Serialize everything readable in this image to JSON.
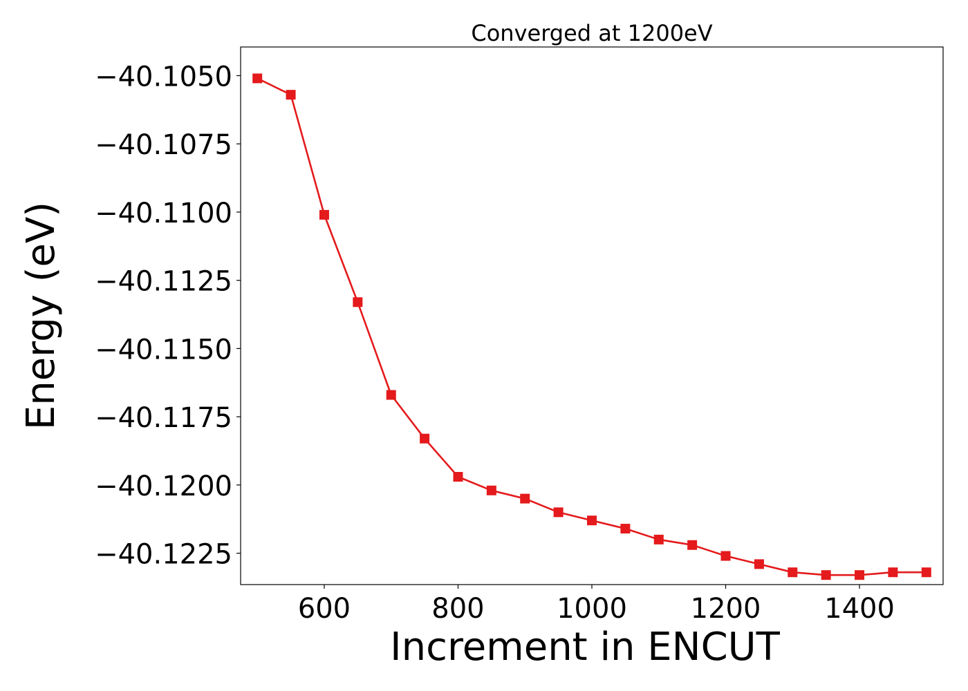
{
  "chart_data": {
    "type": "line",
    "title": "Converged at 1200eV",
    "xlabel": "Increment in ENCUT",
    "ylabel": "Energy (eV)",
    "xlim": [
      475,
      1525
    ],
    "ylim": [
      -40.12365,
      -40.10395
    ],
    "xticks": [
      600,
      800,
      1000,
      1200,
      1400
    ],
    "xtick_labels": [
      "600",
      "800",
      "1000",
      "1200",
      "1400"
    ],
    "yticks": [
      -40.105,
      -40.1075,
      -40.11,
      -40.1125,
      -40.115,
      -40.1175,
      -40.12,
      -40.1225
    ],
    "ytick_labels": [
      "−40.1050",
      "−40.1075",
      "−40.1100",
      "−40.1125",
      "−40.1150",
      "−40.1175",
      "−40.1200",
      "−40.1225"
    ],
    "grid": false,
    "series": [
      {
        "color": "#e41a1c",
        "marker": "square",
        "x": [
          500,
          550,
          600,
          650,
          700,
          750,
          800,
          850,
          900,
          950,
          1000,
          1050,
          1100,
          1150,
          1200,
          1250,
          1300,
          1350,
          1400,
          1450,
          1500
        ],
        "y": [
          -40.1051,
          -40.1057,
          -40.1101,
          -40.1133,
          -40.1167,
          -40.1183,
          -40.1197,
          -40.1202,
          -40.1205,
          -40.121,
          -40.1213,
          -40.1216,
          -40.122,
          -40.1222,
          -40.1226,
          -40.1229,
          -40.1232,
          -40.1233,
          -40.1233,
          -40.1232,
          -40.1232
        ]
      }
    ]
  }
}
